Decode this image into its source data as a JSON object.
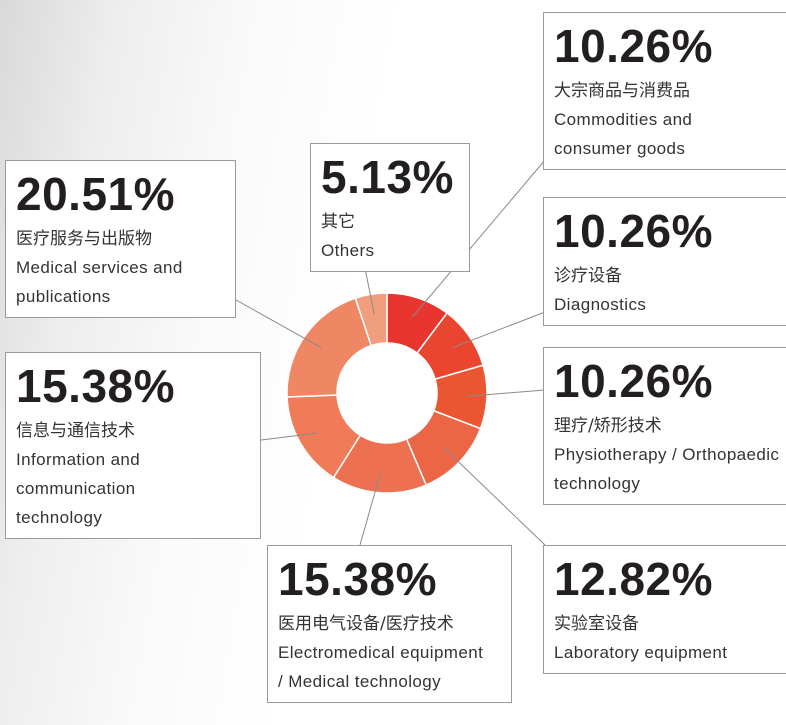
{
  "chart_data": {
    "type": "donut",
    "categories": [
      "Commodities and consumer goods",
      "Diagnostics",
      "Physiotherapy / Orthopaedic technology",
      "Laboratory equipment",
      "Electromedical equipment / Medical technology",
      "Information and communication technology",
      "Medical services and publications",
      "Others"
    ],
    "categories_zh": [
      "大宗商品与消费品",
      "诊疗设备",
      "理疗/矫形技术",
      "实验室设备",
      "医用电气设备/医疗技术",
      "信息与通信技术",
      "医疗服务与出版物",
      "其它"
    ],
    "values": [
      10.26,
      10.26,
      10.26,
      12.82,
      15.38,
      15.38,
      20.51,
      5.13
    ],
    "value_labels": [
      "10.26%",
      "10.26%",
      "10.26%",
      "12.82%",
      "15.38%",
      "15.38%",
      "20.51%",
      "5.13%"
    ],
    "colors": [
      "#e8352f",
      "#e9452f",
      "#eb5632",
      "#ec6645",
      "#ed7050",
      "#ef7b59",
      "#ef8764",
      "#f19e7f"
    ]
  }
}
